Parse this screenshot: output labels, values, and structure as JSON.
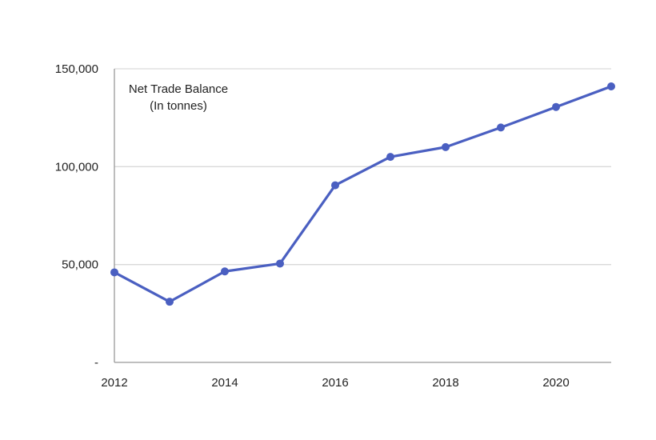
{
  "chart_data": {
    "type": "line",
    "title": "Net Trade Balance",
    "subtitle": "(In tonnes)",
    "xlabel": "",
    "ylabel": "",
    "x": [
      2012,
      2013,
      2014,
      2015,
      2016,
      2017,
      2018,
      2019,
      2020,
      2021
    ],
    "x_tick_labels": [
      "2012",
      "2014",
      "2016",
      "2018",
      "2020"
    ],
    "y_tick_labels": [
      "-",
      "50,000",
      "100,000",
      "150,000"
    ],
    "y_ticks": [
      0,
      50000,
      100000,
      150000
    ],
    "xlim": [
      2012,
      2021
    ],
    "ylim": [
      0,
      150000
    ],
    "grid": true,
    "series": [
      {
        "values": [
          46000,
          31000,
          46500,
          50500,
          90500,
          105000,
          110000,
          120000,
          130500,
          141000
        ]
      }
    ],
    "colors": {
      "line": "#4a5fc1",
      "grid": "#d9d9d9",
      "axis": "#999999"
    }
  }
}
